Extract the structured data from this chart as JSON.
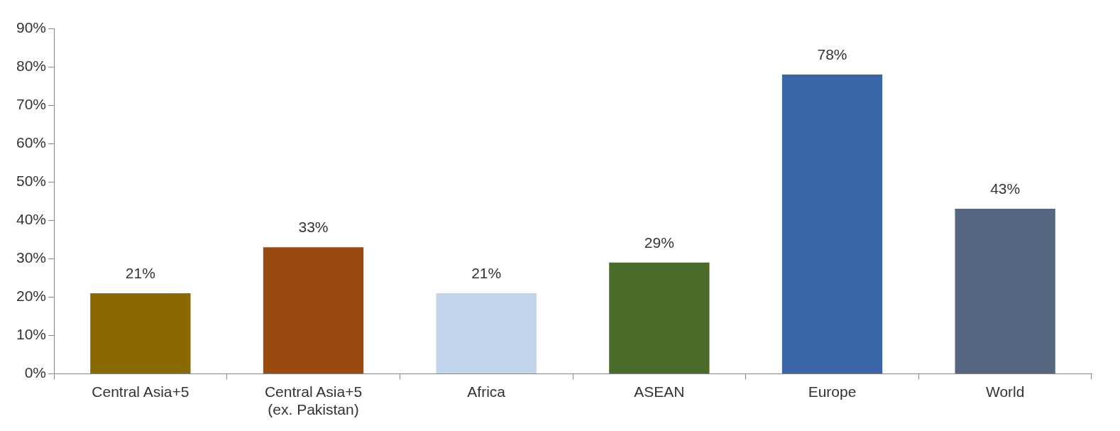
{
  "chart_data": {
    "type": "bar",
    "categories": [
      "Central Asia+5",
      "Central Asia+5\n(ex. Pakistan)",
      "Africa",
      "ASEAN",
      "Europe",
      "World"
    ],
    "values": [
      21,
      33,
      21,
      29,
      78,
      43
    ],
    "colors": [
      "#8a6a00",
      "#9a4a0f",
      "#c2d4ec",
      "#4b6b2b",
      "#3b65a9",
      "#576781"
    ],
    "value_labels": [
      "21%",
      "33%",
      "21%",
      "29%",
      "78%",
      "43%"
    ],
    "ylim": [
      0,
      90
    ],
    "yticks": [
      {
        "value": 0,
        "label": "0%"
      },
      {
        "value": 10,
        "label": "10%"
      },
      {
        "value": 20,
        "label": "20%"
      },
      {
        "value": 30,
        "label": "30%"
      },
      {
        "value": 40,
        "label": "40%"
      },
      {
        "value": 50,
        "label": "50%"
      },
      {
        "value": 60,
        "label": "60%"
      },
      {
        "value": 70,
        "label": "70%"
      },
      {
        "value": 80,
        "label": "80%"
      },
      {
        "value": 90,
        "label": "90%"
      }
    ],
    "grid": false,
    "legend": false
  }
}
